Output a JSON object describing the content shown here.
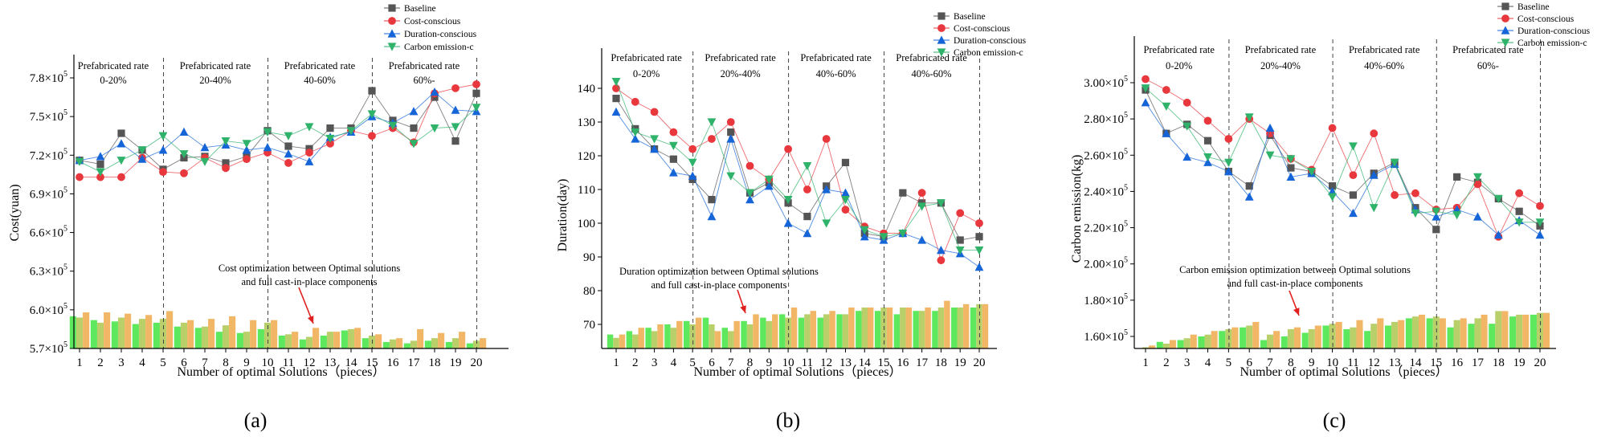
{
  "chart_data": [
    {
      "id": "a",
      "type": "line",
      "caption": "(a)",
      "xlabel": "Number of optimal Solutions（pieces）",
      "ylabel": "Cost(yuan)",
      "x": [
        1,
        2,
        3,
        4,
        5,
        6,
        7,
        8,
        9,
        10,
        11,
        12,
        13,
        14,
        15,
        16,
        17,
        18,
        19,
        20
      ],
      "ylim": [
        570000,
        780000
      ],
      "yticks": [
        {
          "value": 570000,
          "mant": "5.7",
          "exp": "5"
        },
        {
          "value": 600000,
          "mant": "6.0",
          "exp": "5"
        },
        {
          "value": 630000,
          "mant": "6.3",
          "exp": "5"
        },
        {
          "value": 660000,
          "mant": "6.6",
          "exp": "5"
        },
        {
          "value": 690000,
          "mant": "6.9",
          "exp": "5"
        },
        {
          "value": 720000,
          "mant": "7.2",
          "exp": "5"
        },
        {
          "value": 750000,
          "mant": "7.5",
          "exp": "5"
        },
        {
          "value": 780000,
          "mant": "7.8",
          "exp": "5"
        }
      ],
      "separators": [
        5,
        10,
        15,
        20
      ],
      "groups": [
        {
          "line1": "Prefabricated rate",
          "line2": "0-20%"
        },
        {
          "line1": "Prefabricated rate",
          "line2": "20-40%"
        },
        {
          "line1": "Prefabricated rate",
          "line2": "40-60%"
        },
        {
          "line1": "Prefabricated rate",
          "line2": "60%-"
        }
      ],
      "annotation": {
        "line1": "Cost optimization between Optimal solutions",
        "line2": "and full cast-in-place components"
      },
      "legend": {
        "position": "top-right",
        "labels": [
          "Baseline",
          "Cost-conscious",
          "Duration-conscious",
          "Carbon emission-c"
        ]
      },
      "series": [
        {
          "name": "Baseline",
          "marker": "square",
          "color": "#555555",
          "values": [
            716000,
            713000,
            737000,
            724000,
            709000,
            718000,
            719000,
            714000,
            719000,
            739000,
            727000,
            725000,
            741000,
            741000,
            770000,
            747000,
            741000,
            765000,
            731000,
            768000
          ]
        },
        {
          "name": "Cost-conscious",
          "marker": "circle",
          "color": "#e8383d",
          "values": [
            703000,
            703000,
            703000,
            718000,
            707000,
            706000,
            718000,
            710000,
            717000,
            722000,
            714000,
            722000,
            729000,
            739000,
            735000,
            741000,
            730000,
            768000,
            772000,
            775000
          ]
        },
        {
          "name": "Duration-conscious",
          "marker": "triangle-up",
          "color": "#1565d8",
          "values": [
            716000,
            719000,
            729000,
            717000,
            724000,
            738000,
            726000,
            728000,
            724000,
            726000,
            721000,
            715000,
            734000,
            738000,
            750000,
            745000,
            754000,
            769000,
            755000,
            754000
          ]
        },
        {
          "name": "Carbon emission-c",
          "marker": "triangle-down",
          "color": "#2fb36b",
          "values": [
            715000,
            707000,
            716000,
            724000,
            735000,
            721000,
            715000,
            731000,
            729000,
            738000,
            735000,
            742000,
            733000,
            739000,
            752000,
            743000,
            729000,
            741000,
            742000,
            757000
          ]
        }
      ],
      "bar_series": [
        {
          "name": "green-bars",
          "color": "#5ee85e",
          "values": [
            595000,
            592000,
            591000,
            589000,
            590000,
            587000,
            586000,
            583000,
            582000,
            585000,
            580000,
            577000,
            580000,
            584000,
            578000,
            575000,
            574000,
            576000,
            575000,
            574000
          ]
        },
        {
          "name": "olive-bars",
          "color": "#b8cf6a",
          "values": [
            594000,
            590000,
            594000,
            593000,
            593000,
            590000,
            587000,
            588000,
            583000,
            590000,
            581000,
            579000,
            583000,
            585000,
            580000,
            577000,
            576000,
            578000,
            578000,
            576000
          ]
        },
        {
          "name": "orange-bars",
          "color": "#f2b766",
          "values": [
            598000,
            598000,
            597000,
            596000,
            599000,
            592000,
            593000,
            595000,
            592000,
            592000,
            583000,
            586000,
            583000,
            586000,
            581000,
            578000,
            585000,
            582000,
            583000,
            578000
          ]
        }
      ]
    },
    {
      "id": "b",
      "type": "line",
      "caption": "(b)",
      "xlabel": "Number of optimal Solutions（pieces）",
      "ylabel": "Duration(day)",
      "x": [
        1,
        2,
        3,
        4,
        5,
        6,
        7,
        8,
        9,
        10,
        11,
        12,
        13,
        14,
        15,
        16,
        17,
        18,
        19,
        20
      ],
      "ylim": [
        65,
        145
      ],
      "yticks": [
        {
          "value": 70,
          "label": "70"
        },
        {
          "value": 80,
          "label": "80"
        },
        {
          "value": 90,
          "label": "90"
        },
        {
          "value": 100,
          "label": "100"
        },
        {
          "value": 110,
          "label": "110"
        },
        {
          "value": 120,
          "label": "120"
        },
        {
          "value": 130,
          "label": "130"
        },
        {
          "value": 140,
          "label": "140"
        }
      ],
      "separators": [
        5,
        10,
        15,
        20
      ],
      "groups": [
        {
          "line1": "Prefabricated rate",
          "line2": "0-20%"
        },
        {
          "line1": "Prefabricated rate",
          "line2": "20%-40%"
        },
        {
          "line1": "Prefabricated rate",
          "line2": "40%-60%"
        },
        {
          "line1": "Prefabricated rate",
          "line2": "40%-60%"
        }
      ],
      "annotation": {
        "line1": "Duration optimization between Optimal solutions",
        "line2": "and full cast-in-place components"
      },
      "legend": {
        "position": "top-right",
        "labels": [
          "Baseline",
          "Cost-conscious",
          "Duration-conscious",
          "Carbon emission-c"
        ]
      },
      "series": [
        {
          "name": "Baseline",
          "marker": "square",
          "color": "#555555",
          "values": [
            137,
            128,
            122,
            119,
            113,
            107,
            127,
            109,
            112,
            106,
            102,
            111,
            118,
            97,
            96,
            109,
            106,
            106,
            95,
            96
          ]
        },
        {
          "name": "Cost-conscious",
          "marker": "circle",
          "color": "#e8383d",
          "values": [
            140,
            136,
            133,
            127,
            122,
            125,
            130,
            117,
            113,
            122,
            110,
            125,
            104,
            99,
            97,
            97,
            109,
            89,
            103,
            100
          ]
        },
        {
          "name": "Duration-conscious",
          "marker": "triangle-up",
          "color": "#1565d8",
          "values": [
            133,
            125,
            122,
            115,
            114,
            102,
            125,
            107,
            111,
            100,
            97,
            110,
            109,
            96,
            95,
            97,
            95,
            92,
            91,
            87
          ]
        },
        {
          "name": "Carbon emission-c",
          "marker": "triangle-down",
          "color": "#2fb36b",
          "values": [
            142,
            127,
            125,
            123,
            118,
            130,
            114,
            109,
            113,
            107,
            117,
            100,
            107,
            98,
            96,
            97,
            105,
            106,
            92,
            92
          ]
        }
      ],
      "bar_series": [
        {
          "name": "green-bars",
          "color": "#5ee85e",
          "values": [
            67,
            68,
            69,
            70,
            71,
            72,
            69,
            71,
            72,
            73,
            72,
            72,
            73,
            74,
            74,
            73,
            74,
            74,
            75,
            75
          ]
        },
        {
          "name": "olive-bars",
          "color": "#b8cf6a",
          "values": [
            66,
            67,
            68,
            69,
            70,
            70,
            68,
            70,
            71,
            72,
            73,
            73,
            73,
            75,
            75,
            75,
            74,
            75,
            75,
            76
          ]
        },
        {
          "name": "orange-bars",
          "color": "#f2b766",
          "values": [
            67,
            69,
            70,
            71,
            72,
            68,
            71,
            73,
            73,
            75,
            74,
            74,
            75,
            75,
            75,
            75,
            75,
            77,
            76,
            76
          ]
        }
      ]
    },
    {
      "id": "c",
      "type": "line",
      "caption": "(c)",
      "xlabel": "Number of optimal Solutions（pieces）",
      "ylabel": "Carbon emission(kg)",
      "x": [
        1,
        2,
        3,
        4,
        5,
        6,
        7,
        8,
        9,
        10,
        11,
        12,
        13,
        14,
        15,
        16,
        17,
        18,
        19,
        20
      ],
      "ylim": [
        150000,
        310000
      ],
      "yticks": [
        {
          "value": 160000,
          "mant": "1.60",
          "exp": "5"
        },
        {
          "value": 180000,
          "mant": "1.80",
          "exp": "5"
        },
        {
          "value": 200000,
          "mant": "2.00",
          "exp": "5"
        },
        {
          "value": 220000,
          "mant": "2.20",
          "exp": "5"
        },
        {
          "value": 240000,
          "mant": "2.40",
          "exp": "5"
        },
        {
          "value": 260000,
          "mant": "2.60",
          "exp": "5"
        },
        {
          "value": 280000,
          "mant": "2.80",
          "exp": "5"
        },
        {
          "value": 300000,
          "mant": "3.00",
          "exp": "5"
        }
      ],
      "separators": [
        5,
        10,
        15,
        20
      ],
      "groups": [
        {
          "line1": "Prefabricated rate",
          "line2": "0-20%"
        },
        {
          "line1": "Prefabricated rate",
          "line2": "20%-40%"
        },
        {
          "line1": "Prefabricated rate",
          "line2": "40%-60%"
        },
        {
          "line1": "Prefabricated rate",
          "line2": "60%-"
        }
      ],
      "annotation": {
        "line1": "Carbon emission optimization between Optimal solutions",
        "line2": "and full cast-in-place components"
      },
      "legend": {
        "position": "top-right",
        "labels": [
          "Baseline",
          "Cost-conscious",
          "Duration-conscious",
          "Carbon emission-c"
        ]
      },
      "series": [
        {
          "name": "Baseline",
          "marker": "square",
          "color": "#555555",
          "values": [
            296000,
            272000,
            277000,
            268000,
            251000,
            243000,
            271000,
            253000,
            251000,
            243000,
            238000,
            250000,
            256000,
            231000,
            219000,
            248000,
            245000,
            236000,
            229000,
            221000
          ]
        },
        {
          "name": "Cost-conscious",
          "marker": "circle",
          "color": "#e8383d",
          "values": [
            302000,
            296000,
            289000,
            279000,
            269000,
            280000,
            272000,
            258000,
            252000,
            275000,
            249000,
            272000,
            238000,
            239000,
            230000,
            231000,
            244000,
            215000,
            239000,
            232000
          ]
        },
        {
          "name": "Duration-conscious",
          "marker": "triangle-up",
          "color": "#1565d8",
          "values": [
            289000,
            272000,
            259000,
            256000,
            251000,
            237000,
            275000,
            248000,
            250000,
            240000,
            228000,
            249000,
            255000,
            230000,
            226000,
            230000,
            226000,
            216000,
            224000,
            216000
          ]
        },
        {
          "name": "Carbon emission-c",
          "marker": "triangle-down",
          "color": "#2fb36b",
          "values": [
            297000,
            287000,
            276000,
            259000,
            256000,
            281000,
            260000,
            258000,
            251000,
            237000,
            265000,
            231000,
            256000,
            228000,
            229000,
            227000,
            248000,
            236000,
            223000,
            223000
          ]
        }
      ],
      "bar_series": [
        {
          "name": "green-bars",
          "color": "#5ee85e",
          "values": [
            152000,
            157000,
            158000,
            160000,
            163000,
            165000,
            158000,
            160000,
            162000,
            166000,
            164000,
            163000,
            166000,
            170000,
            170000,
            165000,
            167000,
            167000,
            171000,
            172000
          ]
        },
        {
          "name": "olive-bars",
          "color": "#b8cf6a",
          "values": [
            154000,
            156000,
            159000,
            161000,
            164000,
            166000,
            161000,
            164000,
            164000,
            167000,
            165000,
            167000,
            168000,
            171000,
            171000,
            169000,
            170000,
            174000,
            172000,
            173000
          ]
        },
        {
          "name": "orange-bars",
          "color": "#f2b766",
          "values": [
            155000,
            158000,
            161000,
            163000,
            165000,
            168000,
            163000,
            165000,
            166000,
            168000,
            169000,
            170000,
            169000,
            172000,
            170000,
            170000,
            172000,
            174000,
            172000,
            173000
          ]
        }
      ]
    }
  ]
}
